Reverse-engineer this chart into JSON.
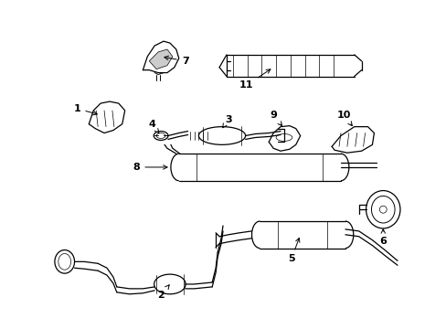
{
  "background_color": "#ffffff",
  "line_color": "#000000",
  "fig_width": 4.89,
  "fig_height": 3.6,
  "dpi": 100,
  "label_fontsize": 8.0,
  "lw_main": 0.9,
  "lw_thin": 0.5,
  "lw_med": 0.7
}
